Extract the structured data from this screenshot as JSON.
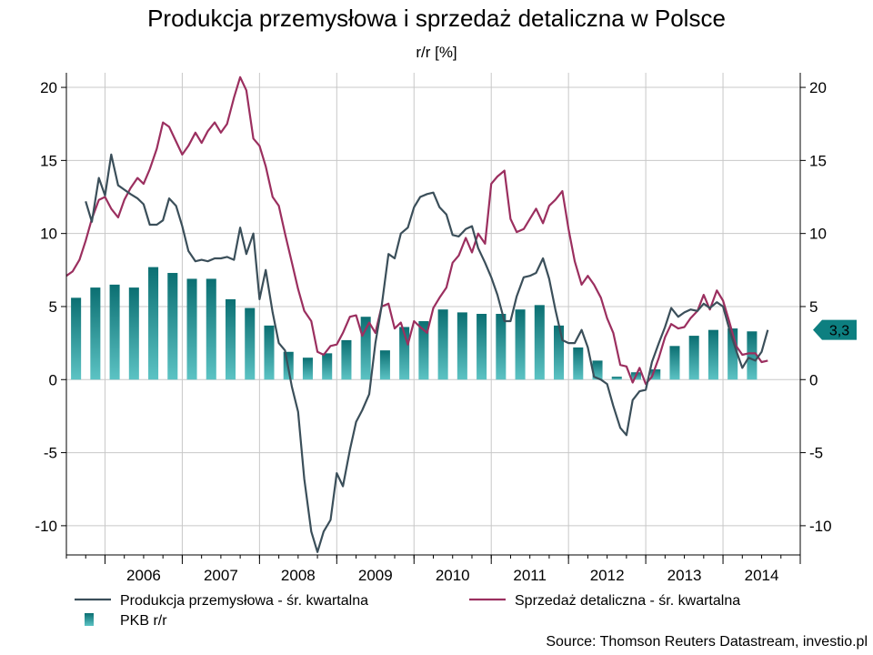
{
  "chart_data": {
    "type": "line",
    "title": "Produkcja przemysłowa i sprzedaż detaliczna w Polsce",
    "subtitle": "r/r [%]",
    "ylim": [
      -12,
      21
    ],
    "yticks": [
      20,
      15,
      10,
      5,
      0,
      -5,
      -10
    ],
    "xlim": [
      2005.5,
      2015.0
    ],
    "year_labels": [
      "2006",
      "2007",
      "2008",
      "2009",
      "2010",
      "2011",
      "2012",
      "2013",
      "2014"
    ],
    "grid": true,
    "legend_position": "bottom",
    "last_value_tag": "3,3",
    "source": "Source: Thomson Reuters Datastream, investio.pl",
    "colors": {
      "production": "#3b4f5a",
      "retail": "#9b2f5f",
      "gdp": "#1a8a8a",
      "tag": "#0d7f80",
      "grid": "#c8c8c8"
    },
    "series": [
      {
        "name": "Produkcja przemysłowa - śr. kwartalna",
        "kind": "line",
        "points": [
          [
            2005.75,
            12.2
          ],
          [
            2005.83,
            10.8
          ],
          [
            2005.92,
            13.8
          ],
          [
            2006.0,
            12.6
          ],
          [
            2006.08,
            15.4
          ],
          [
            2006.17,
            13.3
          ],
          [
            2006.25,
            13.0
          ],
          [
            2006.33,
            12.7
          ],
          [
            2006.42,
            12.4
          ],
          [
            2006.5,
            12.0
          ],
          [
            2006.58,
            10.6
          ],
          [
            2006.67,
            10.6
          ],
          [
            2006.75,
            10.9
          ],
          [
            2006.83,
            12.4
          ],
          [
            2006.92,
            11.9
          ],
          [
            2007.0,
            10.5
          ],
          [
            2007.08,
            8.8
          ],
          [
            2007.17,
            8.1
          ],
          [
            2007.25,
            8.2
          ],
          [
            2007.33,
            8.1
          ],
          [
            2007.42,
            8.3
          ],
          [
            2007.5,
            8.3
          ],
          [
            2007.58,
            8.4
          ],
          [
            2007.67,
            8.2
          ],
          [
            2007.75,
            10.4
          ],
          [
            2007.83,
            8.6
          ],
          [
            2007.92,
            10.0
          ],
          [
            2008.0,
            5.5
          ],
          [
            2008.08,
            7.5
          ],
          [
            2008.17,
            4.6
          ],
          [
            2008.25,
            2.5
          ],
          [
            2008.33,
            2.0
          ],
          [
            2008.42,
            -0.5
          ],
          [
            2008.5,
            -2.2
          ],
          [
            2008.58,
            -6.8
          ],
          [
            2008.67,
            -10.4
          ],
          [
            2008.75,
            -11.8
          ],
          [
            2008.83,
            -10.4
          ],
          [
            2008.92,
            -9.6
          ],
          [
            2009.0,
            -6.4
          ],
          [
            2009.08,
            -7.3
          ],
          [
            2009.17,
            -4.8
          ],
          [
            2009.25,
            -2.9
          ],
          [
            2009.33,
            -2.1
          ],
          [
            2009.42,
            -1.0
          ],
          [
            2009.5,
            2.5
          ],
          [
            2009.58,
            5.0
          ],
          [
            2009.67,
            8.6
          ],
          [
            2009.75,
            8.3
          ],
          [
            2009.83,
            10.0
          ],
          [
            2009.92,
            10.4
          ],
          [
            2010.0,
            11.8
          ],
          [
            2010.08,
            12.5
          ],
          [
            2010.17,
            12.7
          ],
          [
            2010.25,
            12.8
          ],
          [
            2010.33,
            11.8
          ],
          [
            2010.42,
            11.3
          ],
          [
            2010.5,
            9.9
          ],
          [
            2010.58,
            9.8
          ],
          [
            2010.67,
            10.3
          ],
          [
            2010.75,
            10.5
          ],
          [
            2010.83,
            9.0
          ],
          [
            2010.92,
            8.0
          ],
          [
            2011.0,
            7.0
          ],
          [
            2011.08,
            5.8
          ],
          [
            2011.17,
            4.0
          ],
          [
            2011.25,
            4.0
          ],
          [
            2011.33,
            5.7
          ],
          [
            2011.42,
            7.0
          ],
          [
            2011.5,
            7.1
          ],
          [
            2011.58,
            7.3
          ],
          [
            2011.67,
            8.3
          ],
          [
            2011.75,
            6.9
          ],
          [
            2011.83,
            4.8
          ],
          [
            2011.92,
            2.7
          ],
          [
            2012.0,
            2.5
          ],
          [
            2012.08,
            2.5
          ],
          [
            2012.17,
            3.4
          ],
          [
            2012.25,
            2.2
          ],
          [
            2012.33,
            0.2
          ],
          [
            2012.42,
            0.0
          ],
          [
            2012.5,
            -0.3
          ],
          [
            2012.58,
            -1.8
          ],
          [
            2012.67,
            -3.3
          ],
          [
            2012.75,
            -3.8
          ],
          [
            2012.83,
            -1.4
          ],
          [
            2012.92,
            -0.8
          ],
          [
            2013.0,
            -0.7
          ],
          [
            2013.08,
            1.2
          ],
          [
            2013.17,
            2.5
          ],
          [
            2013.25,
            3.6
          ],
          [
            2013.33,
            4.9
          ],
          [
            2013.42,
            4.3
          ],
          [
            2013.5,
            4.6
          ],
          [
            2013.58,
            4.8
          ],
          [
            2013.67,
            4.7
          ],
          [
            2013.75,
            5.2
          ],
          [
            2013.83,
            4.9
          ],
          [
            2013.92,
            5.3
          ],
          [
            2014.0,
            5.0
          ],
          [
            2014.08,
            3.5
          ],
          [
            2014.17,
            2.0
          ],
          [
            2014.25,
            0.8
          ],
          [
            2014.33,
            1.5
          ],
          [
            2014.42,
            1.3
          ],
          [
            2014.5,
            1.9
          ],
          [
            2014.58,
            3.4
          ]
        ]
      },
      {
        "name": "Sprzedaż detaliczna - śr. kwartalna",
        "kind": "line",
        "points": [
          [
            2005.5,
            7.1
          ],
          [
            2005.58,
            7.4
          ],
          [
            2005.67,
            8.2
          ],
          [
            2005.75,
            9.5
          ],
          [
            2005.83,
            11.0
          ],
          [
            2005.92,
            12.3
          ],
          [
            2006.0,
            12.5
          ],
          [
            2006.08,
            11.7
          ],
          [
            2006.17,
            11.1
          ],
          [
            2006.25,
            12.3
          ],
          [
            2006.33,
            13.1
          ],
          [
            2006.42,
            13.8
          ],
          [
            2006.5,
            13.4
          ],
          [
            2006.58,
            14.4
          ],
          [
            2006.67,
            15.8
          ],
          [
            2006.75,
            17.6
          ],
          [
            2006.83,
            17.3
          ],
          [
            2006.92,
            16.3
          ],
          [
            2007.0,
            15.4
          ],
          [
            2007.08,
            16.0
          ],
          [
            2007.17,
            16.9
          ],
          [
            2007.25,
            16.2
          ],
          [
            2007.33,
            17.0
          ],
          [
            2007.42,
            17.6
          ],
          [
            2007.5,
            16.9
          ],
          [
            2007.58,
            17.5
          ],
          [
            2007.67,
            19.3
          ],
          [
            2007.75,
            20.7
          ],
          [
            2007.83,
            19.8
          ],
          [
            2007.92,
            16.5
          ],
          [
            2008.0,
            16.0
          ],
          [
            2008.08,
            14.6
          ],
          [
            2008.17,
            12.5
          ],
          [
            2008.25,
            11.9
          ],
          [
            2008.33,
            10.0
          ],
          [
            2008.42,
            8.0
          ],
          [
            2008.5,
            6.2
          ],
          [
            2008.58,
            4.7
          ],
          [
            2008.67,
            4.0
          ],
          [
            2008.75,
            1.9
          ],
          [
            2008.83,
            1.7
          ],
          [
            2008.92,
            2.3
          ],
          [
            2009.0,
            2.4
          ],
          [
            2009.08,
            3.2
          ],
          [
            2009.17,
            4.3
          ],
          [
            2009.25,
            4.4
          ],
          [
            2009.33,
            3.0
          ],
          [
            2009.42,
            3.9
          ],
          [
            2009.5,
            3.2
          ],
          [
            2009.58,
            5.0
          ],
          [
            2009.67,
            5.2
          ],
          [
            2009.75,
            3.5
          ],
          [
            2009.83,
            3.9
          ],
          [
            2009.92,
            2.4
          ],
          [
            2010.0,
            4.0
          ],
          [
            2010.08,
            3.6
          ],
          [
            2010.17,
            3.2
          ],
          [
            2010.25,
            4.9
          ],
          [
            2010.33,
            5.6
          ],
          [
            2010.42,
            6.3
          ],
          [
            2010.5,
            8.0
          ],
          [
            2010.58,
            8.5
          ],
          [
            2010.67,
            9.7
          ],
          [
            2010.75,
            8.7
          ],
          [
            2010.83,
            10.0
          ],
          [
            2010.92,
            9.3
          ],
          [
            2011.0,
            13.4
          ],
          [
            2011.08,
            13.9
          ],
          [
            2011.17,
            14.3
          ],
          [
            2011.25,
            11.0
          ],
          [
            2011.33,
            10.1
          ],
          [
            2011.42,
            10.3
          ],
          [
            2011.5,
            11.0
          ],
          [
            2011.58,
            11.7
          ],
          [
            2011.67,
            10.7
          ],
          [
            2011.75,
            11.9
          ],
          [
            2011.83,
            12.3
          ],
          [
            2011.92,
            12.9
          ],
          [
            2012.0,
            10.3
          ],
          [
            2012.08,
            8.1
          ],
          [
            2012.17,
            6.5
          ],
          [
            2012.25,
            7.1
          ],
          [
            2012.33,
            6.5
          ],
          [
            2012.42,
            5.6
          ],
          [
            2012.5,
            4.2
          ],
          [
            2012.58,
            3.2
          ],
          [
            2012.67,
            1.0
          ],
          [
            2012.75,
            0.9
          ],
          [
            2012.83,
            -0.2
          ],
          [
            2012.92,
            0.8
          ],
          [
            2013.0,
            -0.3
          ],
          [
            2013.08,
            0.2
          ],
          [
            2013.17,
            1.5
          ],
          [
            2013.25,
            2.9
          ],
          [
            2013.33,
            3.8
          ],
          [
            2013.42,
            3.5
          ],
          [
            2013.5,
            3.6
          ],
          [
            2013.58,
            4.2
          ],
          [
            2013.67,
            4.7
          ],
          [
            2013.75,
            5.8
          ],
          [
            2013.83,
            4.8
          ],
          [
            2013.92,
            6.1
          ],
          [
            2014.0,
            5.4
          ],
          [
            2014.08,
            4.0
          ],
          [
            2014.17,
            2.3
          ],
          [
            2014.25,
            1.7
          ],
          [
            2014.33,
            1.8
          ],
          [
            2014.42,
            1.8
          ],
          [
            2014.5,
            1.2
          ],
          [
            2014.58,
            1.3
          ]
        ]
      },
      {
        "name": "PKB r/r",
        "kind": "bar",
        "points": [
          [
            2005.625,
            5.6
          ],
          [
            2005.875,
            6.3
          ],
          [
            2006.125,
            6.5
          ],
          [
            2006.375,
            6.3
          ],
          [
            2006.625,
            7.7
          ],
          [
            2006.875,
            7.3
          ],
          [
            2007.125,
            6.9
          ],
          [
            2007.375,
            6.9
          ],
          [
            2007.625,
            5.5
          ],
          [
            2007.875,
            4.9
          ],
          [
            2008.125,
            3.7
          ],
          [
            2008.375,
            1.9
          ],
          [
            2008.625,
            1.5
          ],
          [
            2008.875,
            1.8
          ],
          [
            2009.125,
            2.7
          ],
          [
            2009.375,
            4.3
          ],
          [
            2009.625,
            2.0
          ],
          [
            2009.875,
            3.6
          ],
          [
            2010.125,
            4.0
          ],
          [
            2010.375,
            4.8
          ],
          [
            2010.625,
            4.6
          ],
          [
            2010.875,
            4.5
          ],
          [
            2011.125,
            4.5
          ],
          [
            2011.375,
            4.8
          ],
          [
            2011.625,
            5.1
          ],
          [
            2011.875,
            3.7
          ],
          [
            2012.125,
            2.2
          ],
          [
            2012.375,
            1.3
          ],
          [
            2012.625,
            0.2
          ],
          [
            2012.875,
            0.5
          ],
          [
            2013.125,
            0.7
          ],
          [
            2013.375,
            2.3
          ],
          [
            2013.625,
            3.0
          ],
          [
            2013.875,
            3.4
          ],
          [
            2014.125,
            3.5
          ],
          [
            2014.375,
            3.3
          ]
        ]
      }
    ]
  }
}
